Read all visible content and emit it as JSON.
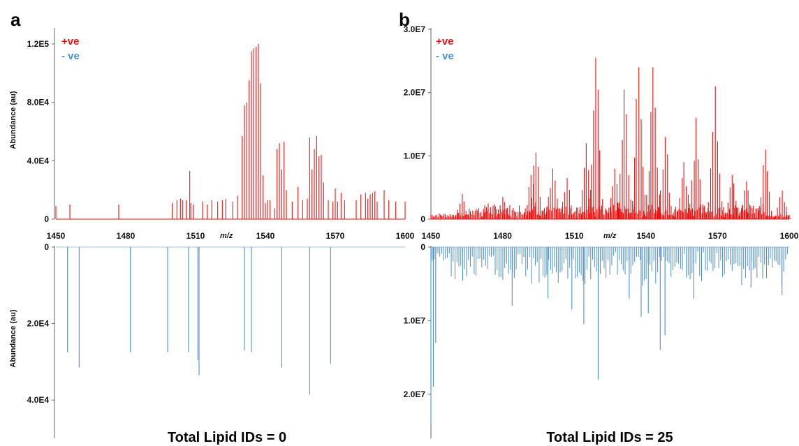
{
  "panels": [
    {
      "letter": "a",
      "legend": {
        "pos_label": "+ve",
        "neg_label": "- ve",
        "pos_color": "#ee1111",
        "neg_color": "#4a8fd6"
      },
      "total_label": "Total Lipid IDs = 0"
    },
    {
      "letter": "b",
      "legend": {
        "pos_label": "+ve",
        "neg_label": "- ve",
        "pos_color": "#ee1111",
        "neg_color": "#4a8fd6"
      },
      "total_label": "Total Lipid IDs = 25"
    }
  ],
  "chart_data": [
    {
      "type": "bar",
      "panel": "a",
      "polarity": "+ve",
      "color": "#ee1111",
      "ylabel": "Abundance (au)",
      "xlabel": "m/z",
      "xlim": [
        1450,
        1600
      ],
      "ylim": [
        0,
        130000
      ],
      "x_ticks": [
        1450,
        1480,
        1510,
        1540,
        1570,
        1600
      ],
      "y_ticks": [
        0,
        40000,
        80000,
        120000
      ],
      "y_tick_labels": [
        "0",
        "4.0E4",
        "8.0E4",
        "1.2E5"
      ],
      "x": [
        1450,
        1456,
        1477,
        1500,
        1502,
        1503.5,
        1504.5,
        1506,
        1507.5,
        1508,
        1509,
        1513,
        1515,
        1517,
        1519.5,
        1521.5,
        1523,
        1526,
        1528,
        1530,
        1531,
        1532,
        1533,
        1534,
        1535,
        1536,
        1537,
        1538,
        1539,
        1540,
        1541,
        1542,
        1544,
        1545,
        1546,
        1547,
        1548,
        1549,
        1551.5,
        1554,
        1556,
        1558,
        1559,
        1560,
        1561,
        1562,
        1563,
        1564,
        1565,
        1567,
        1569,
        1570,
        1571,
        1572.5,
        1574,
        1579,
        1581,
        1583,
        1584,
        1585,
        1586,
        1587,
        1588,
        1591,
        1593,
        1596,
        1600
      ],
      "values": [
        9000,
        10000,
        10000,
        11000,
        13000,
        14000,
        13000,
        13000,
        33000,
        11000,
        10000,
        12000,
        10000,
        13000,
        12000,
        13000,
        14000,
        12000,
        16000,
        57000,
        78000,
        80000,
        95000,
        115000,
        117000,
        118000,
        120000,
        93000,
        30000,
        11000,
        13000,
        13000,
        7500,
        48000,
        52000,
        34000,
        53000,
        20000,
        12000,
        22000,
        13000,
        14000,
        56000,
        34000,
        48000,
        57000,
        43000,
        44000,
        25000,
        13000,
        12000,
        21000,
        12000,
        18000,
        13000,
        13000,
        17000,
        18000,
        14000,
        17000,
        18000,
        19000,
        12000,
        20000,
        13000,
        12000,
        12000
      ]
    },
    {
      "type": "bar",
      "panel": "a",
      "polarity": "- ve",
      "color": "#4a8fd6",
      "ylabel": "Abundance (au)",
      "xlim": [
        1450,
        1600
      ],
      "ylim": [
        0,
        50000
      ],
      "inverted": true,
      "y_ticks": [
        0,
        20000,
        40000
      ],
      "y_tick_labels": [
        "0",
        "2.0E4",
        "4.0E4"
      ],
      "x": [
        1455,
        1460,
        1482,
        1498,
        1507,
        1511,
        1511.5,
        1531,
        1534,
        1547,
        1559,
        1568
      ],
      "values": [
        27500,
        31500,
        27500,
        27500,
        27500,
        29500,
        33500,
        27000,
        27500,
        31500,
        38500,
        30500
      ]
    },
    {
      "type": "bar",
      "panel": "b",
      "polarity": "+ve",
      "color": "#ee1111",
      "xlabel": "m/z",
      "xlim": [
        1450,
        1600
      ],
      "ylim": [
        0,
        30000000
      ],
      "x_ticks": [
        1450,
        1480,
        1510,
        1540,
        1570,
        1600
      ],
      "y_ticks": [
        0,
        10000000,
        20000000,
        30000000
      ],
      "y_tick_labels": [
        "0",
        "1.0E7",
        "2.0E7",
        "3.0E7"
      ],
      "clusters": [
        {
          "center": 1463,
          "peak": 4000000
        },
        {
          "center": 1474,
          "peak": 2500000
        },
        {
          "center": 1480,
          "peak": 3500000
        },
        {
          "center": 1492,
          "peak": 7000000
        },
        {
          "center": 1494,
          "peak": 10500000
        },
        {
          "center": 1501,
          "peak": 8000000
        },
        {
          "center": 1507,
          "peak": 6500000
        },
        {
          "center": 1515,
          "peak": 12000000
        },
        {
          "center": 1519,
          "peak": 25500000
        },
        {
          "center": 1527,
          "peak": 8000000
        },
        {
          "center": 1531,
          "peak": 20500000
        },
        {
          "center": 1537,
          "peak": 24000000
        },
        {
          "center": 1543,
          "peak": 24000000
        },
        {
          "center": 1548,
          "peak": 13000000
        },
        {
          "center": 1556,
          "peak": 9000000
        },
        {
          "center": 1561,
          "peak": 16000000
        },
        {
          "center": 1569,
          "peak": 21000000
        },
        {
          "center": 1576,
          "peak": 7000000
        },
        {
          "center": 1582,
          "peak": 6000000
        },
        {
          "center": 1590,
          "peak": 11000000
        },
        {
          "center": 1597,
          "peak": 4500000
        }
      ]
    },
    {
      "type": "bar",
      "panel": "b",
      "polarity": "- ve",
      "color": "#4a8fd6",
      "xlim": [
        1450,
        1600
      ],
      "ylim": [
        0,
        26000000
      ],
      "inverted": true,
      "y_ticks": [
        0,
        10000000,
        20000000
      ],
      "y_tick_labels": [
        "0",
        "1.0E7",
        "2.0E7"
      ],
      "tall_peaks": [
        {
          "x": 1450,
          "value": 24000000
        },
        {
          "x": 1451,
          "value": 19000000
        },
        {
          "x": 1452,
          "value": 13000000
        },
        {
          "x": 1484,
          "value": 8000000
        },
        {
          "x": 1499,
          "value": 7000000
        },
        {
          "x": 1509,
          "value": 8500000
        },
        {
          "x": 1514,
          "value": 10500000
        },
        {
          "x": 1520,
          "value": 18000000
        },
        {
          "x": 1533,
          "value": 7000000
        },
        {
          "x": 1538,
          "value": 9500000
        },
        {
          "x": 1541,
          "value": 9000000
        },
        {
          "x": 1546,
          "value": 14000000
        },
        {
          "x": 1548,
          "value": 12000000
        },
        {
          "x": 1560,
          "value": 7000000
        },
        {
          "x": 1584,
          "value": 5500000
        },
        {
          "x": 1597,
          "value": 6500000
        }
      ]
    }
  ]
}
